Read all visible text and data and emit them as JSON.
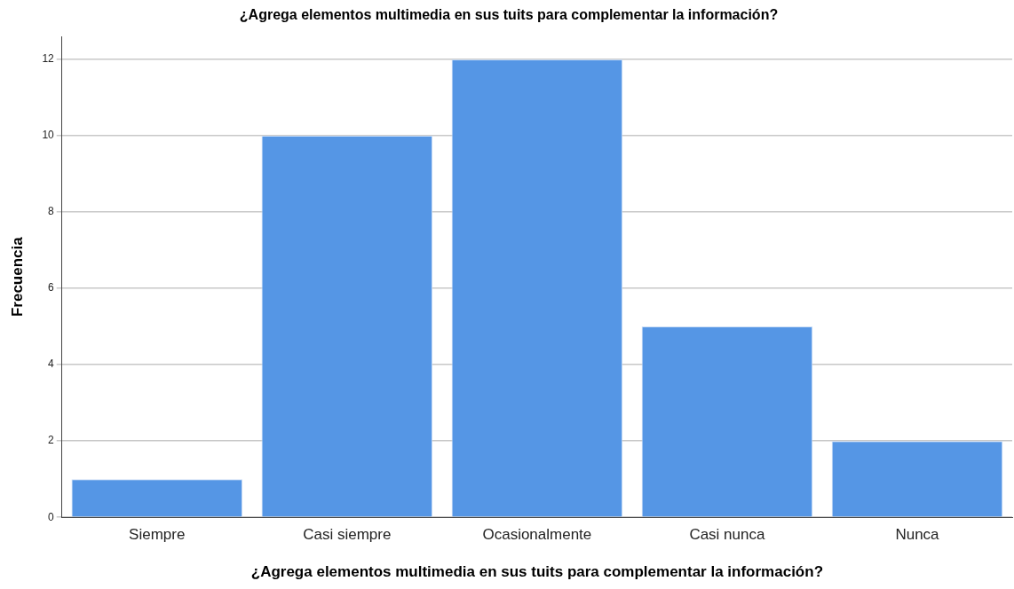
{
  "chart_data": {
    "type": "bar",
    "title": "¿Agrega elementos multimedia en sus tuits para complementar la información?",
    "xlabel": "¿Agrega elementos multimedia en sus tuits para complementar la información?",
    "ylabel": "Frecuencia",
    "categories": [
      "Siempre",
      "Casi siempre",
      "Ocasionalmente",
      "Casi nunca",
      "Nunca"
    ],
    "values": [
      1,
      10,
      12,
      5,
      2
    ],
    "color": "#5596e5",
    "ylim": [
      0,
      12.6
    ],
    "yticks": [
      0,
      2,
      4,
      6,
      8,
      10,
      12
    ],
    "grid": "y",
    "legend": false
  }
}
